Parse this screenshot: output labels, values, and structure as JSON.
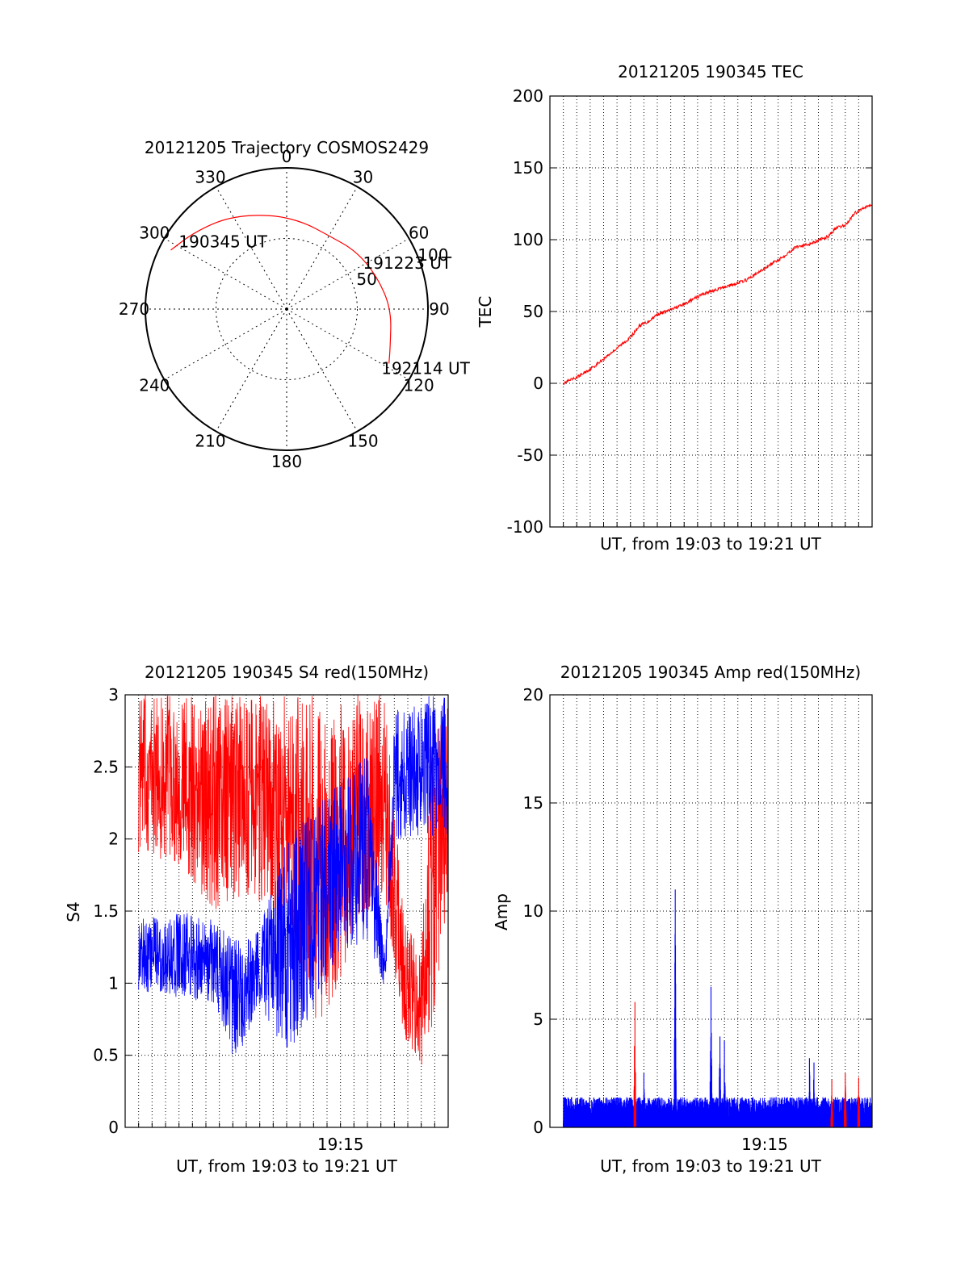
{
  "chart_data": [
    {
      "type": "polar",
      "title": "20121205 Trajectory COSMOS2429",
      "angle_labels": [
        "0",
        "30",
        "60",
        "90",
        "120",
        "150",
        "180",
        "210",
        "240",
        "270",
        "300",
        "330"
      ],
      "radial_ticks": [
        50,
        100
      ],
      "radial_labels": [
        "50",
        "100"
      ],
      "rlim": [
        0,
        100
      ],
      "grid": true,
      "series": [
        {
          "color": "#ff0000",
          "points": [
            {
              "az": 297,
              "r": 92
            },
            {
              "az": 310,
              "r": 85
            },
            {
              "az": 328,
              "r": 77
            },
            {
              "az": 350,
              "r": 68
            },
            {
              "az": 10,
              "r": 63
            },
            {
              "az": 30,
              "r": 60
            },
            {
              "az": 50,
              "r": 64
            },
            {
              "az": 70,
              "r": 68
            },
            {
              "az": 90,
              "r": 74
            },
            {
              "az": 110,
              "r": 78
            },
            {
              "az": 118,
              "r": 82
            }
          ]
        }
      ],
      "annotations": [
        {
          "text": "190345 UT",
          "az": 302,
          "r": 90
        },
        {
          "text": "191223 UT",
          "az": 59,
          "r": 63
        },
        {
          "text": "192114 UT",
          "az": 122,
          "r": 79
        }
      ]
    },
    {
      "type": "line",
      "title": "20121205 190345 TEC",
      "xlabel": "UT, from 19:03 to 19:21 UT",
      "ylabel": "TEC",
      "xlim": [
        "19:03:00",
        "19:21:00"
      ],
      "ylim": [
        -100,
        200
      ],
      "yticks": [
        "-100",
        "-50",
        "0",
        "50",
        "100",
        "150",
        "200"
      ],
      "xticks": [],
      "grid": true,
      "series": [
        {
          "color": "#ff0000",
          "x": [
            "19:03:45",
            "19:04:30",
            "19:05:30",
            "19:06:30",
            "19:07:30",
            "19:08:00",
            "19:08:30",
            "19:09:00",
            "19:09:30",
            "19:10:30",
            "19:11:30",
            "19:12:00",
            "19:13:00",
            "19:14:00",
            "19:15:00",
            "19:16:00",
            "19:16:45",
            "19:17:30",
            "19:18:30",
            "19:19:00",
            "19:19:30",
            "19:20:00",
            "19:20:45",
            "19:21:00"
          ],
          "values": [
            0,
            4,
            12,
            22,
            32,
            40,
            43,
            48,
            50,
            55,
            62,
            64,
            68,
            72,
            80,
            88,
            95,
            97,
            102,
            108,
            110,
            118,
            124,
            124
          ]
        }
      ]
    },
    {
      "type": "line",
      "title": "20121205 190345 S4 red(150MHz)",
      "xlabel": "UT, from 19:03 to 19:21 UT",
      "ylabel": "S4",
      "xlim": [
        "19:03:00",
        "19:21:00"
      ],
      "ylim": [
        0,
        3
      ],
      "yticks": [
        "0",
        "0.5",
        "1",
        "1.5",
        "2",
        "2.5",
        "3"
      ],
      "xticks": [
        "19:15"
      ],
      "grid": true,
      "series": [
        {
          "color": "#ff0000",
          "profile": [
            {
              "t": "19:03:45",
              "low": 1.9,
              "high": 3.0
            },
            {
              "t": "19:06:00",
              "low": 1.8,
              "high": 3.0
            },
            {
              "t": "19:08:00",
              "low": 1.5,
              "high": 3.0
            },
            {
              "t": "19:10:00",
              "low": 1.6,
              "high": 3.0
            },
            {
              "t": "19:12:00",
              "low": 1.4,
              "high": 3.0
            },
            {
              "t": "19:14:00",
              "low": 0.6,
              "high": 3.0
            },
            {
              "t": "19:16:00",
              "low": 1.4,
              "high": 3.0
            },
            {
              "t": "19:17:30",
              "low": 1.6,
              "high": 3.0
            },
            {
              "t": "19:18:30",
              "low": 0.6,
              "high": 1.5
            },
            {
              "t": "19:19:30",
              "low": 0.4,
              "high": 1.2
            },
            {
              "t": "19:20:00",
              "low": 0.6,
              "high": 2.8
            },
            {
              "t": "19:21:00",
              "low": 1.6,
              "high": 3.0
            }
          ]
        },
        {
          "color": "#0000ff",
          "profile": [
            {
              "t": "19:03:45",
              "low": 0.95,
              "high": 1.45
            },
            {
              "t": "19:06:00",
              "low": 0.9,
              "high": 1.5
            },
            {
              "t": "19:08:00",
              "low": 0.85,
              "high": 1.45
            },
            {
              "t": "19:09:00",
              "low": 0.4,
              "high": 1.3
            },
            {
              "t": "19:10:30",
              "low": 0.85,
              "high": 1.4
            },
            {
              "t": "19:12:00",
              "low": 0.5,
              "high": 2.0
            },
            {
              "t": "19:13:30",
              "low": 0.8,
              "high": 2.2
            },
            {
              "t": "19:15:00",
              "low": 1.2,
              "high": 2.4
            },
            {
              "t": "19:16:30",
              "low": 1.3,
              "high": 2.6
            },
            {
              "t": "19:17:30",
              "low": 0.95,
              "high": 1.2
            },
            {
              "t": "19:18:00",
              "low": 2.0,
              "high": 2.9
            },
            {
              "t": "19:19:30",
              "low": 2.0,
              "high": 3.0
            },
            {
              "t": "19:21:00",
              "low": 2.0,
              "high": 3.0
            }
          ]
        }
      ]
    },
    {
      "type": "line",
      "title": "20121205 190345 Amp red(150MHz)",
      "xlabel": "UT, from 19:03 to 19:21 UT",
      "ylabel": "Amp",
      "xlim": [
        "19:03:00",
        "19:21:00"
      ],
      "ylim": [
        0,
        20
      ],
      "yticks": [
        "0",
        "5",
        "10",
        "15",
        "20"
      ],
      "xticks": [
        "19:15"
      ],
      "grid": true,
      "series": [
        {
          "color": "#0000ff",
          "baseline": [
            0.3,
            1.4
          ],
          "spikes": [
            {
              "t": "19:08:15",
              "value": 2.5
            },
            {
              "t": "19:10:00",
              "value": 11.0
            },
            {
              "t": "19:12:00",
              "value": 6.5
            },
            {
              "t": "19:12:30",
              "value": 4.2
            },
            {
              "t": "19:12:45",
              "value": 4.0
            },
            {
              "t": "19:17:30",
              "value": 3.2
            },
            {
              "t": "19:17:45",
              "value": 3.0
            }
          ]
        },
        {
          "color": "#ff0000",
          "spikes": [
            {
              "t": "19:07:45",
              "value": 5.8
            },
            {
              "t": "19:18:45",
              "value": 2.2
            },
            {
              "t": "19:19:30",
              "value": 2.5
            },
            {
              "t": "19:20:15",
              "value": 2.3
            }
          ]
        }
      ]
    }
  ]
}
